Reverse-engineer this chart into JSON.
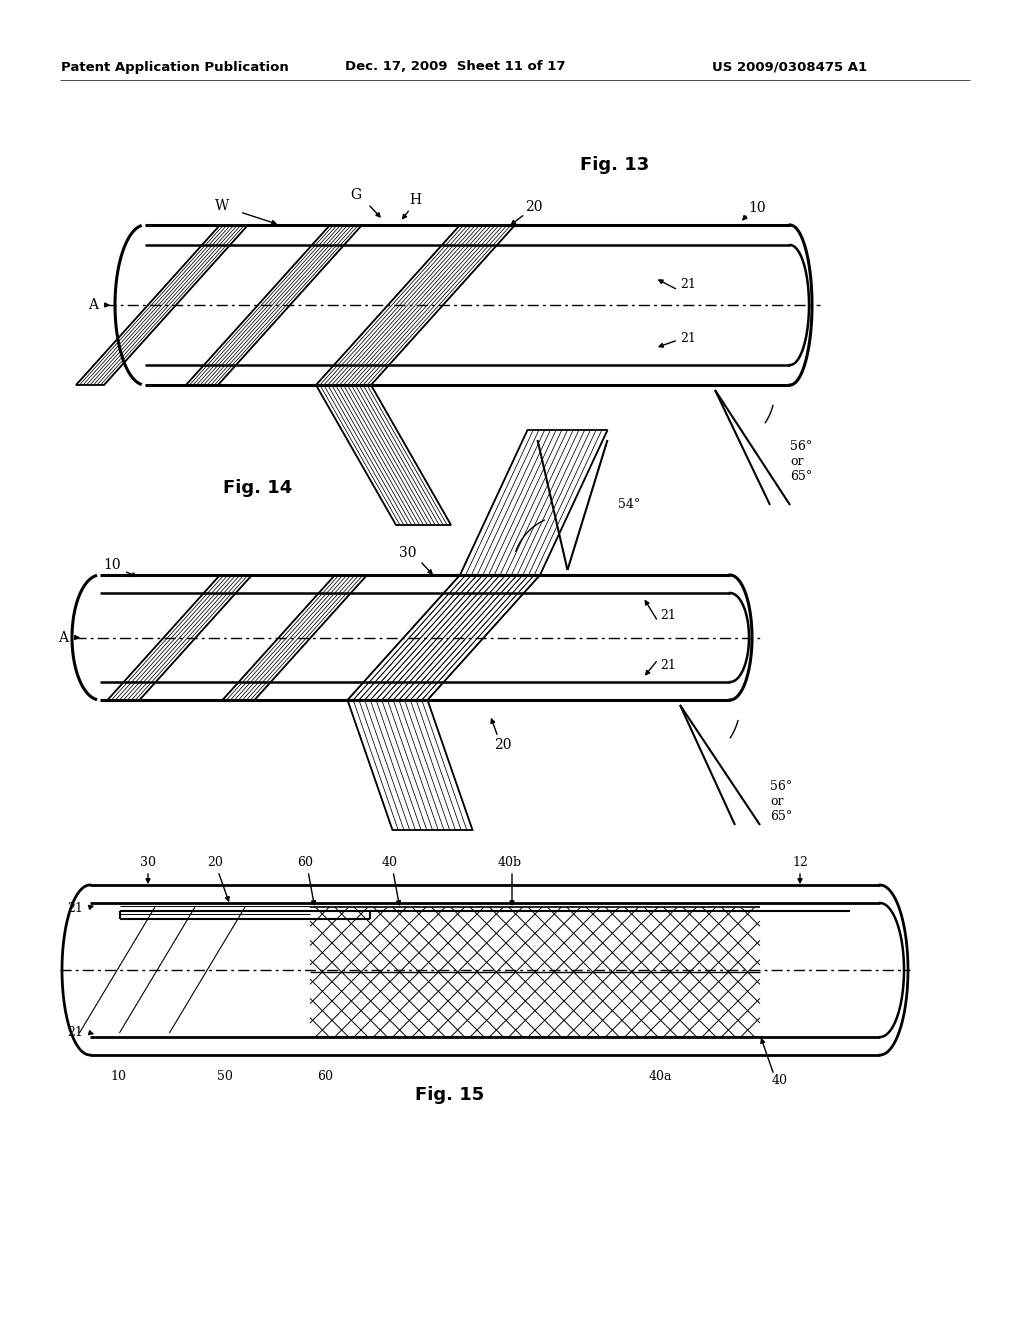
{
  "bg_color": "#ffffff",
  "header_left": "Patent Application Publication",
  "header_mid": "Dec. 17, 2009  Sheet 11 of 17",
  "header_right": "US 2009/0308475 A1",
  "fig13_label": "Fig. 13",
  "fig14_label": "Fig. 14",
  "fig15_label": "Fig. 15"
}
